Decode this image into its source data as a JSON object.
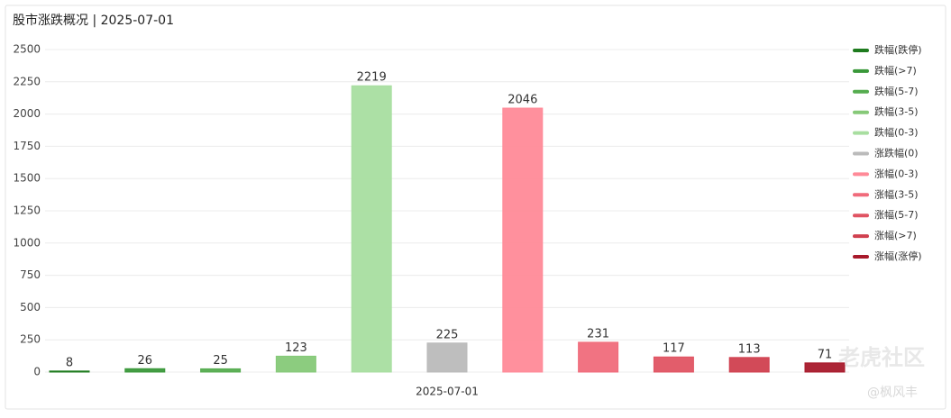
{
  "chart_data": {
    "type": "bar",
    "title": "股市涨跌概况 | 2025-07-01",
    "categories": [
      "2025-07-01"
    ],
    "series": [
      {
        "name": "跌幅(跌停)",
        "color": "#1e7b1e",
        "values": [
          8
        ]
      },
      {
        "name": "跌幅(>7)",
        "color": "#3a983a",
        "values": [
          26
        ]
      },
      {
        "name": "跌幅(5-7)",
        "color": "#55ac4f",
        "values": [
          25
        ]
      },
      {
        "name": "跌幅(3-5)",
        "color": "#86c978",
        "values": [
          123
        ]
      },
      {
        "name": "跌幅(0-3)",
        "color": "#a8dea0",
        "values": [
          2219
        ]
      },
      {
        "name": "涨跌幅(0)",
        "color": "#bbbbbb",
        "values": [
          225
        ]
      },
      {
        "name": "涨幅(0-3)",
        "color": "#ff8a98",
        "values": [
          2046
        ]
      },
      {
        "name": "涨幅(3-5)",
        "color": "#f06b7b",
        "values": [
          231
        ]
      },
      {
        "name": "涨幅(5-7)",
        "color": "#e05463",
        "values": [
          117
        ]
      },
      {
        "name": "涨幅(>7)",
        "color": "#d0404f",
        "values": [
          113
        ]
      },
      {
        "name": "涨幅(涨停)",
        "color": "#a8192b",
        "values": [
          71
        ]
      }
    ],
    "ylim": [
      0,
      2500
    ],
    "yticks": [
      0,
      250,
      500,
      750,
      1000,
      1250,
      1500,
      1750,
      2000,
      2250,
      2500
    ],
    "grid": true,
    "legend": "right",
    "annotations": [
      "老虎社区",
      "@枫风丰"
    ]
  }
}
